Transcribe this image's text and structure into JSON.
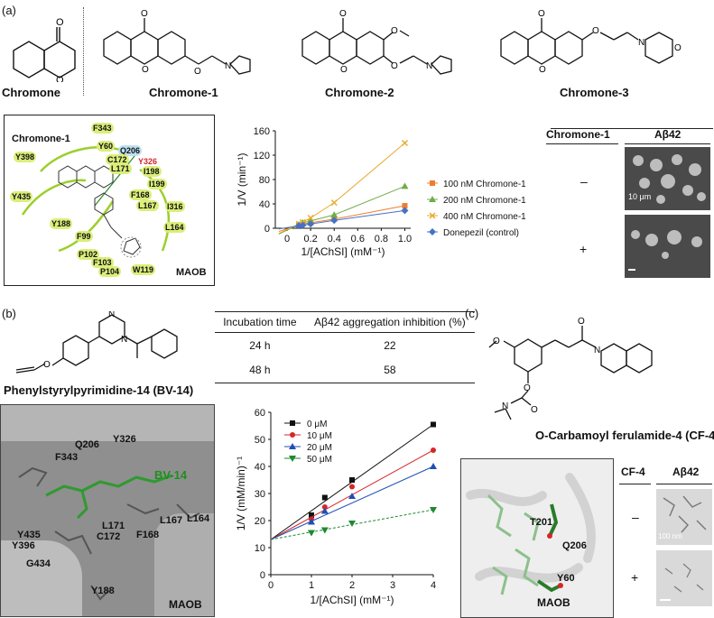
{
  "panels": {
    "a": "(a)",
    "b": "(b)",
    "c": "(c)"
  },
  "molecules": {
    "chromone": "Chromone",
    "chromone1": "Chromone-1",
    "chromone2": "Chromone-2",
    "chromone3": "Chromone-3",
    "bv14_name": "Phenylstyrylpyrimidine-14 (BV-14)",
    "cf4_name": "O-Carbamoyl ferulamide-4 (CF-4)"
  },
  "interaction_map": {
    "ligand": "Chromone-1",
    "protein": "MAOB",
    "residues": [
      "F343",
      "Y60",
      "Q206",
      "C172",
      "Y326",
      "L171",
      "I198",
      "I199",
      "F168",
      "L167",
      "I316",
      "Y398",
      "Y435",
      "Y188",
      "F99",
      "P102",
      "F103",
      "P104",
      "W119",
      "L164"
    ]
  },
  "chart_a": {
    "type": "line",
    "ylabel": "1/V (min⁻¹)",
    "xlabel": "1/[AChSI] (mM⁻¹)",
    "xlim": [
      -0.1,
      1.05
    ],
    "ylim": [
      0,
      160
    ],
    "xticks": [
      "0",
      "0.2",
      "0.4",
      "0.6",
      "0.8",
      "1.0"
    ],
    "xtick_values": [
      0,
      0.2,
      0.4,
      0.6,
      0.8,
      1.0
    ],
    "yticks": [
      "0",
      "40",
      "80",
      "120",
      "160"
    ],
    "ytick_values": [
      0,
      40,
      80,
      120,
      160
    ],
    "x": [
      0.1,
      0.133,
      0.2,
      0.4,
      1.0
    ],
    "series": [
      {
        "name": "100 nM Chromone-1",
        "color": "#ee7d31",
        "marker": "square",
        "values": [
          5,
          7,
          9,
          15,
          37
        ]
      },
      {
        "name": "200 nM Chromone-1",
        "color": "#70ad47",
        "marker": "triangle",
        "values": [
          6,
          9,
          12,
          22,
          69
        ]
      },
      {
        "name": "400 nM Chromone-1",
        "color": "#e6ab2e",
        "marker": "x",
        "values": [
          7,
          10,
          17,
          42,
          140
        ]
      },
      {
        "name": "Donepezil (control)",
        "color": "#4472c4",
        "marker": "diamond",
        "values": [
          4,
          5,
          7,
          13,
          29
        ]
      }
    ]
  },
  "abeta_a": {
    "col1": "Chromone-1",
    "col2": "Aβ42",
    "minus": "–",
    "plus": "+",
    "scale": "10 μm"
  },
  "table_b": {
    "headers": [
      "Incubation time",
      "Aβ42 aggregation inhibition (%)"
    ],
    "rows": [
      [
        "24 h",
        "22"
      ],
      [
        "48 h",
        "58"
      ]
    ]
  },
  "docking_b": {
    "ligand": "BV-14",
    "protein": "MAOB",
    "residues": [
      "Q206",
      "Y326",
      "F343",
      "L171",
      "L167",
      "L164",
      "Y435",
      "Y396",
      "C172",
      "F168",
      "G434",
      "Y188"
    ]
  },
  "chart_b": {
    "type": "line",
    "ylabel": "1/V (mM/min)⁻¹",
    "xlabel": "1/[AChSI] (mM⁻¹)",
    "xlim": [
      0,
      4
    ],
    "ylim": [
      0,
      60
    ],
    "xticks": [
      "0",
      "1",
      "2",
      "3",
      "4"
    ],
    "xtick_values": [
      0,
      1,
      2,
      3,
      4
    ],
    "yticks": [
      "0",
      "10",
      "20",
      "30",
      "40",
      "50",
      "60"
    ],
    "ytick_values": [
      0,
      10,
      20,
      30,
      40,
      50,
      60
    ],
    "x": [
      1,
      1.33,
      2,
      4
    ],
    "series": [
      {
        "name": "0 μM",
        "color": "#111111",
        "marker": "square",
        "values": [
          22,
          28.5,
          35,
          55.5
        ]
      },
      {
        "name": "10 μM",
        "color": "#d62728",
        "marker": "circle",
        "values": [
          20.5,
          25,
          32.5,
          46
        ]
      },
      {
        "name": "20 μM",
        "color": "#1f4fb5",
        "marker": "triangle",
        "values": [
          19.5,
          23.5,
          29,
          40
        ]
      },
      {
        "name": "50 μM",
        "color": "#1b8a2e",
        "marker": "triangle-down",
        "values": [
          15.5,
          16.5,
          19,
          24
        ]
      }
    ],
    "intercept": 13
  },
  "docking_c": {
    "protein": "MAOB",
    "residues": [
      "T201",
      "Q206",
      "Y60"
    ]
  },
  "abeta_c": {
    "col1": "CF-4",
    "col2": "Aβ42",
    "minus": "–",
    "plus": "+",
    "scale": "100 nm"
  }
}
